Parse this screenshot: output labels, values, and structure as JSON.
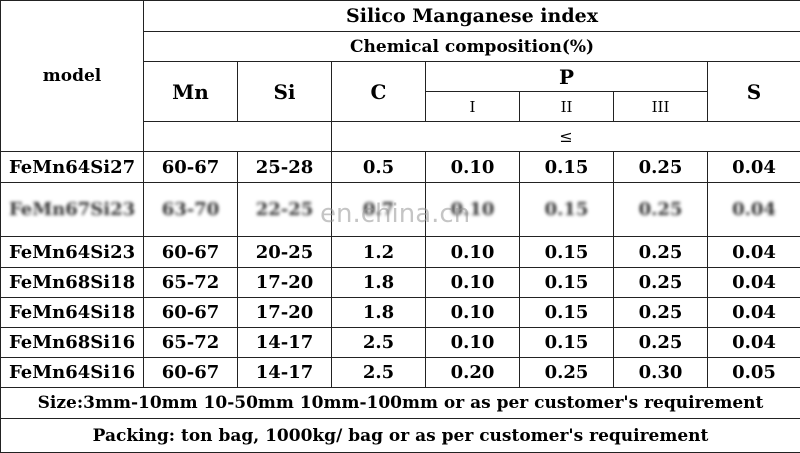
{
  "title": "Silico Manganese index",
  "subtitle": "Chemical composition(%)",
  "model_header": "model",
  "headers": {
    "mn": "Mn",
    "si": "Si",
    "c": "C",
    "p": "P",
    "s": "S"
  },
  "p_sub": [
    "I",
    "II",
    "III"
  ],
  "leq": "≤",
  "rows": [
    {
      "model": "FeMn64Si27",
      "mn": "60-67",
      "si": "25-28",
      "c": "0.5",
      "p1": "0.10",
      "p2": "0.15",
      "p3": "0.25",
      "s": "0.04"
    },
    {
      "model": "FeMn67Si23",
      "mn": "63-70",
      "si": "22-25",
      "c": "0.7",
      "p1": "0.10",
      "p2": "0.15",
      "p3": "0.25",
      "s": "0.04"
    },
    {
      "model": "FeMn64Si23",
      "mn": "60-67",
      "si": "20-25",
      "c": "1.2",
      "p1": "0.10",
      "p2": "0.15",
      "p3": "0.25",
      "s": "0.04"
    },
    {
      "model": "FeMn68Si18",
      "mn": "65-72",
      "si": "17-20",
      "c": "1.8",
      "p1": "0.10",
      "p2": "0.15",
      "p3": "0.25",
      "s": "0.04"
    },
    {
      "model": "FeMn64Si18",
      "mn": "60-67",
      "si": "17-20",
      "c": "1.8",
      "p1": "0.10",
      "p2": "0.15",
      "p3": "0.25",
      "s": "0.04"
    },
    {
      "model": "FeMn68Si16",
      "mn": "65-72",
      "si": "14-17",
      "c": "2.5",
      "p1": "0.10",
      "p2": "0.15",
      "p3": "0.25",
      "s": "0.04"
    },
    {
      "model": "FeMn64Si16",
      "mn": "60-67",
      "si": "14-17",
      "c": "2.5",
      "p1": "0.20",
      "p2": "0.25",
      "p3": "0.30",
      "s": "0.05"
    }
  ],
  "footer_size": "Size:3mm-10mm 10-50mm 10mm-100mm    or as per customer's requirement",
  "footer_packing": "Packing: ton bag, 1000kg/ bag or as per customer's requirement",
  "watermark": "en.china.cn"
}
